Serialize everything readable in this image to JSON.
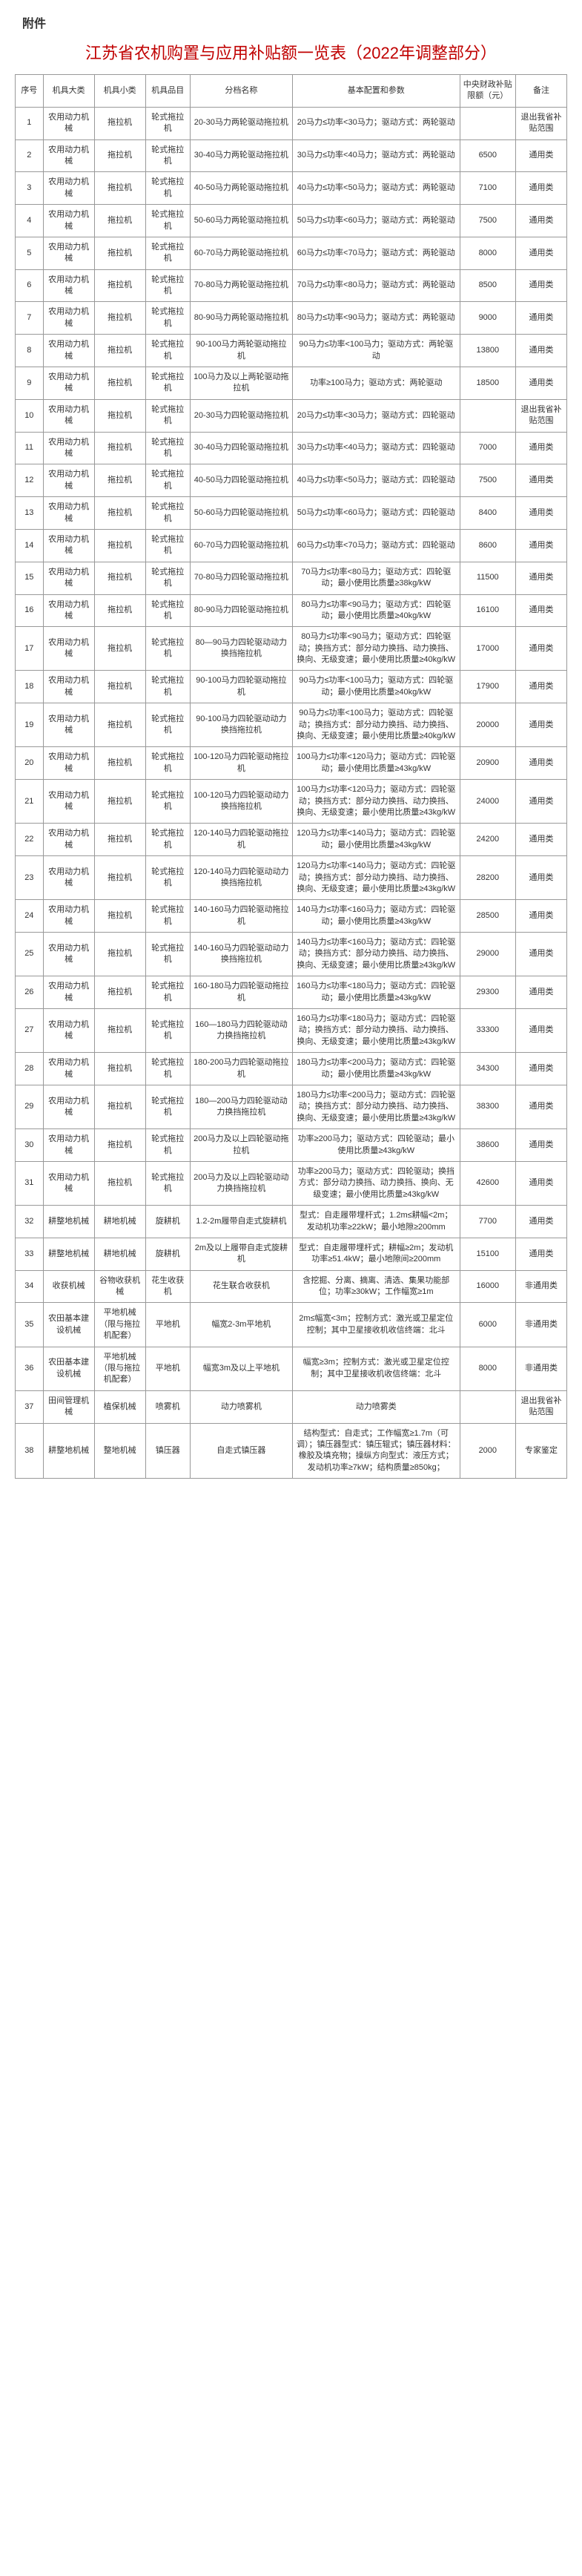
{
  "attachment_label": "附件",
  "title": "江苏省农机购置与应用补贴额一览表（2022年调整部分）",
  "columns": [
    "序号",
    "机具大类",
    "机具小类",
    "机具品目",
    "分档名称",
    "基本配置和参数",
    "中央财政补贴限额（元）",
    "备注"
  ],
  "rows": [
    [
      "1",
      "农用动力机械",
      "拖拉机",
      "轮式拖拉机",
      "20-30马力两轮驱动拖拉机",
      "20马力≤功率<30马力；驱动方式：两轮驱动",
      "",
      "退出我省补贴范围"
    ],
    [
      "2",
      "农用动力机械",
      "拖拉机",
      "轮式拖拉机",
      "30-40马力两轮驱动拖拉机",
      "30马力≤功率<40马力；驱动方式：两轮驱动",
      "6500",
      "通用类"
    ],
    [
      "3",
      "农用动力机械",
      "拖拉机",
      "轮式拖拉机",
      "40-50马力两轮驱动拖拉机",
      "40马力≤功率<50马力；驱动方式：两轮驱动",
      "7100",
      "通用类"
    ],
    [
      "4",
      "农用动力机械",
      "拖拉机",
      "轮式拖拉机",
      "50-60马力两轮驱动拖拉机",
      "50马力≤功率<60马力；驱动方式：两轮驱动",
      "7500",
      "通用类"
    ],
    [
      "5",
      "农用动力机械",
      "拖拉机",
      "轮式拖拉机",
      "60-70马力两轮驱动拖拉机",
      "60马力≤功率<70马力；驱动方式：两轮驱动",
      "8000",
      "通用类"
    ],
    [
      "6",
      "农用动力机械",
      "拖拉机",
      "轮式拖拉机",
      "70-80马力两轮驱动拖拉机",
      "70马力≤功率<80马力；驱动方式：两轮驱动",
      "8500",
      "通用类"
    ],
    [
      "7",
      "农用动力机械",
      "拖拉机",
      "轮式拖拉机",
      "80-90马力两轮驱动拖拉机",
      "80马力≤功率<90马力；驱动方式：两轮驱动",
      "9000",
      "通用类"
    ],
    [
      "8",
      "农用动力机械",
      "拖拉机",
      "轮式拖拉机",
      "90-100马力两轮驱动拖拉机",
      "90马力≤功率<100马力；驱动方式：两轮驱动",
      "13800",
      "通用类"
    ],
    [
      "9",
      "农用动力机械",
      "拖拉机",
      "轮式拖拉机",
      "100马力及以上两轮驱动拖拉机",
      "功率≥100马力；驱动方式：两轮驱动",
      "18500",
      "通用类"
    ],
    [
      "10",
      "农用动力机械",
      "拖拉机",
      "轮式拖拉机",
      "20-30马力四轮驱动拖拉机",
      "20马力≤功率<30马力；驱动方式：四轮驱动",
      "",
      "退出我省补贴范围"
    ],
    [
      "11",
      "农用动力机械",
      "拖拉机",
      "轮式拖拉机",
      "30-40马力四轮驱动拖拉机",
      "30马力≤功率<40马力；驱动方式：四轮驱动",
      "7000",
      "通用类"
    ],
    [
      "12",
      "农用动力机械",
      "拖拉机",
      "轮式拖拉机",
      "40-50马力四轮驱动拖拉机",
      "40马力≤功率<50马力；驱动方式：四轮驱动",
      "7500",
      "通用类"
    ],
    [
      "13",
      "农用动力机械",
      "拖拉机",
      "轮式拖拉机",
      "50-60马力四轮驱动拖拉机",
      "50马力≤功率<60马力；驱动方式：四轮驱动",
      "8400",
      "通用类"
    ],
    [
      "14",
      "农用动力机械",
      "拖拉机",
      "轮式拖拉机",
      "60-70马力四轮驱动拖拉机",
      "60马力≤功率<70马力；驱动方式：四轮驱动",
      "8600",
      "通用类"
    ],
    [
      "15",
      "农用动力机械",
      "拖拉机",
      "轮式拖拉机",
      "70-80马力四轮驱动拖拉机",
      "70马力≤功率<80马力；驱动方式：四轮驱动；最小使用比质量≥38kg/kW",
      "11500",
      "通用类"
    ],
    [
      "16",
      "农用动力机械",
      "拖拉机",
      "轮式拖拉机",
      "80-90马力四轮驱动拖拉机",
      "80马力≤功率<90马力；驱动方式：四轮驱动；最小使用比质量≥40kg/kW",
      "16100",
      "通用类"
    ],
    [
      "17",
      "农用动力机械",
      "拖拉机",
      "轮式拖拉机",
      "80—90马力四轮驱动动力换挡拖拉机",
      "80马力≤功率<90马力；驱动方式：四轮驱动；换挡方式：部分动力换挡、动力换挡、换向、无级变速；最小使用比质量≥40kg/kW",
      "17000",
      "通用类"
    ],
    [
      "18",
      "农用动力机械",
      "拖拉机",
      "轮式拖拉机",
      "90-100马力四轮驱动拖拉机",
      "90马力≤功率<100马力；驱动方式：四轮驱动；最小使用比质量≥40kg/kW",
      "17900",
      "通用类"
    ],
    [
      "19",
      "农用动力机械",
      "拖拉机",
      "轮式拖拉机",
      "90-100马力四轮驱动动力换挡拖拉机",
      "90马力≤功率<100马力；驱动方式：四轮驱动；换挡方式：部分动力换挡、动力换挡、换向、无级变速；最小使用比质量≥40kg/kW",
      "20000",
      "通用类"
    ],
    [
      "20",
      "农用动力机械",
      "拖拉机",
      "轮式拖拉机",
      "100-120马力四轮驱动拖拉机",
      "100马力≤功率<120马力；驱动方式：四轮驱动；最小使用比质量≥43kg/kW",
      "20900",
      "通用类"
    ],
    [
      "21",
      "农用动力机械",
      "拖拉机",
      "轮式拖拉机",
      "100-120马力四轮驱动动力换挡拖拉机",
      "100马力≤功率<120马力；驱动方式：四轮驱动；换挡方式：部分动力换挡、动力换挡、换向、无级变速；最小使用比质量≥43kg/kW",
      "24000",
      "通用类"
    ],
    [
      "22",
      "农用动力机械",
      "拖拉机",
      "轮式拖拉机",
      "120-140马力四轮驱动拖拉机",
      "120马力≤功率<140马力；驱动方式：四轮驱动；最小使用比质量≥43kg/kW",
      "24200",
      "通用类"
    ],
    [
      "23",
      "农用动力机械",
      "拖拉机",
      "轮式拖拉机",
      "120-140马力四轮驱动动力换挡拖拉机",
      "120马力≤功率<140马力；驱动方式：四轮驱动；换挡方式：部分动力换挡、动力换挡、换向、无级变速；最小使用比质量≥43kg/kW",
      "28200",
      "通用类"
    ],
    [
      "24",
      "农用动力机械",
      "拖拉机",
      "轮式拖拉机",
      "140-160马力四轮驱动拖拉机",
      "140马力≤功率<160马力；驱动方式：四轮驱动；最小使用比质量≥43kg/kW",
      "28500",
      "通用类"
    ],
    [
      "25",
      "农用动力机械",
      "拖拉机",
      "轮式拖拉机",
      "140-160马力四轮驱动动力换挡拖拉机",
      "140马力≤功率<160马力；驱动方式：四轮驱动；换挡方式：部分动力换挡、动力换挡、换向、无级变速；最小使用比质量≥43kg/kW",
      "29000",
      "通用类"
    ],
    [
      "26",
      "农用动力机械",
      "拖拉机",
      "轮式拖拉机",
      "160-180马力四轮驱动拖拉机",
      "160马力≤功率<180马力；驱动方式：四轮驱动；最小使用比质量≥43kg/kW",
      "29300",
      "通用类"
    ],
    [
      "27",
      "农用动力机械",
      "拖拉机",
      "轮式拖拉机",
      "160—180马力四轮驱动动力换挡拖拉机",
      "160马力≤功率<180马力；驱动方式：四轮驱动；换挡方式：部分动力换挡、动力换挡、换向、无级变速；最小使用比质量≥43kg/kW",
      "33300",
      "通用类"
    ],
    [
      "28",
      "农用动力机械",
      "拖拉机",
      "轮式拖拉机",
      "180-200马力四轮驱动拖拉机",
      "180马力≤功率<200马力；驱动方式：四轮驱动；最小使用比质量≥43kg/kW",
      "34300",
      "通用类"
    ],
    [
      "29",
      "农用动力机械",
      "拖拉机",
      "轮式拖拉机",
      "180—200马力四轮驱动动力换挡拖拉机",
      "180马力≤功率<200马力；驱动方式：四轮驱动；换挡方式：部分动力换挡、动力换挡、换向、无级变速；最小使用比质量≥43kg/kW",
      "38300",
      "通用类"
    ],
    [
      "30",
      "农用动力机械",
      "拖拉机",
      "轮式拖拉机",
      "200马力及以上四轮驱动拖拉机",
      "功率≥200马力；驱动方式：四轮驱动；最小使用比质量≥43kg/kW",
      "38600",
      "通用类"
    ],
    [
      "31",
      "农用动力机械",
      "拖拉机",
      "轮式拖拉机",
      "200马力及以上四轮驱动动力换挡拖拉机",
      "功率≥200马力；驱动方式：四轮驱动；换挡方式：部分动力换挡、动力换挡、换向、无级变速；最小使用比质量≥43kg/kW",
      "42600",
      "通用类"
    ],
    [
      "32",
      "耕整地机械",
      "耕地机械",
      "旋耕机",
      "1.2-2m履带自走式旋耕机",
      "型式：自走履带埋杆式；1.2m≤耕幅<2m；发动机功率≥22kW；最小地隙≥200mm",
      "7700",
      "通用类"
    ],
    [
      "33",
      "耕整地机械",
      "耕地机械",
      "旋耕机",
      "2m及以上履带自走式旋耕机",
      "型式：自走履带埋杆式；耕幅≥2m；发动机功率≥51.4kW；最小地隙间≥200mm",
      "15100",
      "通用类"
    ],
    [
      "34",
      "收获机械",
      "谷物收获机械",
      "花生收获机",
      "花生联合收获机",
      "含挖掘、分离、摘离、清选、集果功能部位；功率≥30kW；工作幅宽≥1m",
      "16000",
      "非通用类"
    ],
    [
      "35",
      "农田基本建设机械",
      "平地机械（限与拖拉机配套）",
      "平地机",
      "幅宽2-3m平地机",
      "2m≤幅宽<3m；控制方式：激光或卫星定位控制；其中卫星接收机收信终端：北斗",
      "6000",
      "非通用类"
    ],
    [
      "36",
      "农田基本建设机械",
      "平地机械（限与拖拉机配套）",
      "平地机",
      "幅宽3m及以上平地机",
      "幅宽≥3m；控制方式：激光或卫星定位控制；其中卫星接收机收信终端：北斗",
      "8000",
      "非通用类"
    ],
    [
      "37",
      "田间管理机械",
      "植保机械",
      "喷雾机",
      "动力喷雾机",
      "动力喷雾类",
      "",
      "退出我省补贴范围"
    ],
    [
      "38",
      "耕整地机械",
      "整地机械",
      "镇压器",
      "自走式镇压器",
      "结构型式：自走式；工作幅宽≥1.7m（可调）；镇压器型式：镇压辊式；镇压器材料：橡胶及填充物；操纵方向型式：液压方式；发动机功率≥7kW；结构质量≥850kg；",
      "2000",
      "专家鉴定"
    ]
  ]
}
